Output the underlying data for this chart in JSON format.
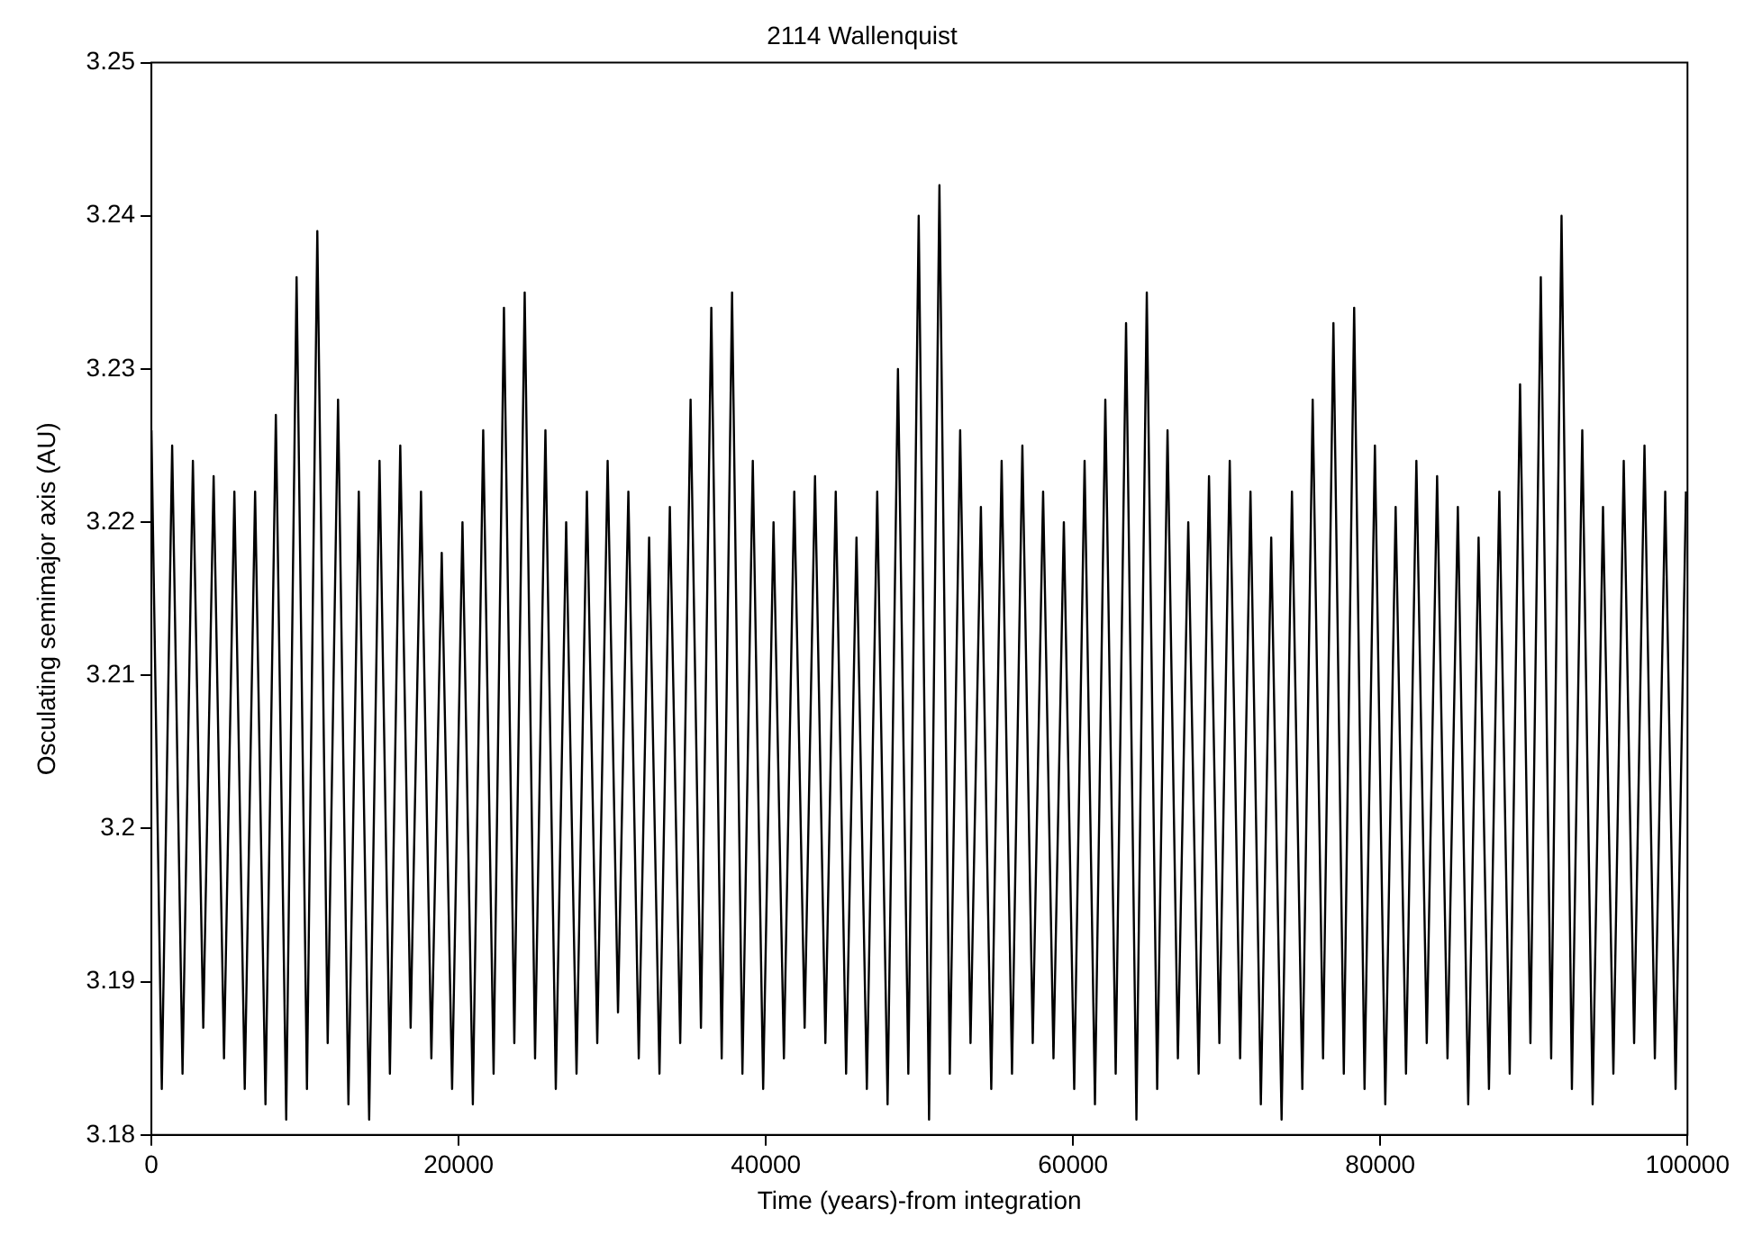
{
  "chart_data": {
    "type": "line",
    "title": "2114 Wallenquist",
    "xlabel": "Time (years)-from integration",
    "ylabel": "Osculating semimajor axis (AU)",
    "xlim": [
      0,
      100000
    ],
    "xticks": [
      0,
      20000,
      40000,
      60000,
      80000,
      100000
    ],
    "ylim": [
      3.18,
      3.25
    ],
    "yticks": [
      3.18,
      3.19,
      3.2,
      3.21,
      3.22,
      3.23,
      3.24,
      3.25
    ],
    "marker": "none",
    "line_style": "solid",
    "legend": false,
    "x": [
      0,
      675,
      1350,
      2025,
      2700,
      3375,
      4050,
      4725,
      5400,
      6075,
      6750,
      7425,
      8100,
      8775,
      9450,
      10125,
      10800,
      11475,
      12150,
      12825,
      13500,
      14175,
      14850,
      15525,
      16200,
      16875,
      17550,
      18225,
      18900,
      19575,
      20250,
      20925,
      21600,
      22275,
      22950,
      23625,
      24300,
      24975,
      25650,
      26325,
      27000,
      27675,
      28350,
      29025,
      29700,
      30375,
      31050,
      31725,
      32400,
      33075,
      33750,
      34425,
      35100,
      35775,
      36450,
      37125,
      37800,
      38475,
      39150,
      39825,
      40500,
      41175,
      41850,
      42525,
      43200,
      43875,
      44550,
      45225,
      45900,
      46575,
      47250,
      47925,
      48600,
      49275,
      49950,
      50625,
      51300,
      51975,
      52650,
      53325,
      54000,
      54675,
      55350,
      56025,
      56700,
      57375,
      58050,
      58725,
      59400,
      60075,
      60750,
      61425,
      62100,
      62775,
      63450,
      64125,
      64800,
      65475,
      66150,
      66825,
      67500,
      68175,
      68850,
      69525,
      70200,
      70875,
      71550,
      72225,
      72900,
      73575,
      74250,
      74925,
      75600,
      76275,
      76950,
      77625,
      78300,
      78975,
      79650,
      80325,
      81000,
      81675,
      82350,
      83025,
      83700,
      84375,
      85050,
      85725,
      86400,
      87075,
      87750,
      88425,
      89100,
      89775,
      90450,
      91125,
      91800,
      92475,
      93150,
      93825,
      94500,
      95175,
      95850,
      96525,
      97200,
      97875,
      98550,
      99225,
      99900
    ],
    "series": [
      {
        "color": "#000000",
        "values": [
          3.226,
          3.183,
          3.225,
          3.184,
          3.224,
          3.187,
          3.223,
          3.185,
          3.222,
          3.183,
          3.222,
          3.182,
          3.227,
          3.181,
          3.236,
          3.183,
          3.239,
          3.186,
          3.228,
          3.182,
          3.222,
          3.181,
          3.224,
          3.184,
          3.225,
          3.187,
          3.222,
          3.185,
          3.218,
          3.183,
          3.22,
          3.182,
          3.226,
          3.184,
          3.234,
          3.186,
          3.235,
          3.185,
          3.226,
          3.183,
          3.22,
          3.184,
          3.222,
          3.186,
          3.224,
          3.188,
          3.222,
          3.185,
          3.219,
          3.184,
          3.221,
          3.186,
          3.228,
          3.187,
          3.234,
          3.185,
          3.235,
          3.184,
          3.224,
          3.183,
          3.22,
          3.185,
          3.222,
          3.187,
          3.223,
          3.186,
          3.222,
          3.184,
          3.219,
          3.183,
          3.222,
          3.182,
          3.23,
          3.184,
          3.24,
          3.181,
          3.242,
          3.184,
          3.226,
          3.186,
          3.221,
          3.183,
          3.224,
          3.184,
          3.225,
          3.186,
          3.222,
          3.185,
          3.22,
          3.183,
          3.224,
          3.182,
          3.228,
          3.184,
          3.233,
          3.181,
          3.235,
          3.183,
          3.226,
          3.185,
          3.22,
          3.184,
          3.223,
          3.186,
          3.224,
          3.185,
          3.222,
          3.182,
          3.219,
          3.181,
          3.222,
          3.183,
          3.228,
          3.185,
          3.233,
          3.184,
          3.234,
          3.183,
          3.225,
          3.182,
          3.221,
          3.184,
          3.224,
          3.186,
          3.223,
          3.185,
          3.221,
          3.182,
          3.219,
          3.183,
          3.222,
          3.184,
          3.229,
          3.186,
          3.236,
          3.185,
          3.24,
          3.183,
          3.226,
          3.182,
          3.221,
          3.184,
          3.224,
          3.186,
          3.225,
          3.185,
          3.222,
          3.183,
          3.222
        ]
      }
    ]
  }
}
